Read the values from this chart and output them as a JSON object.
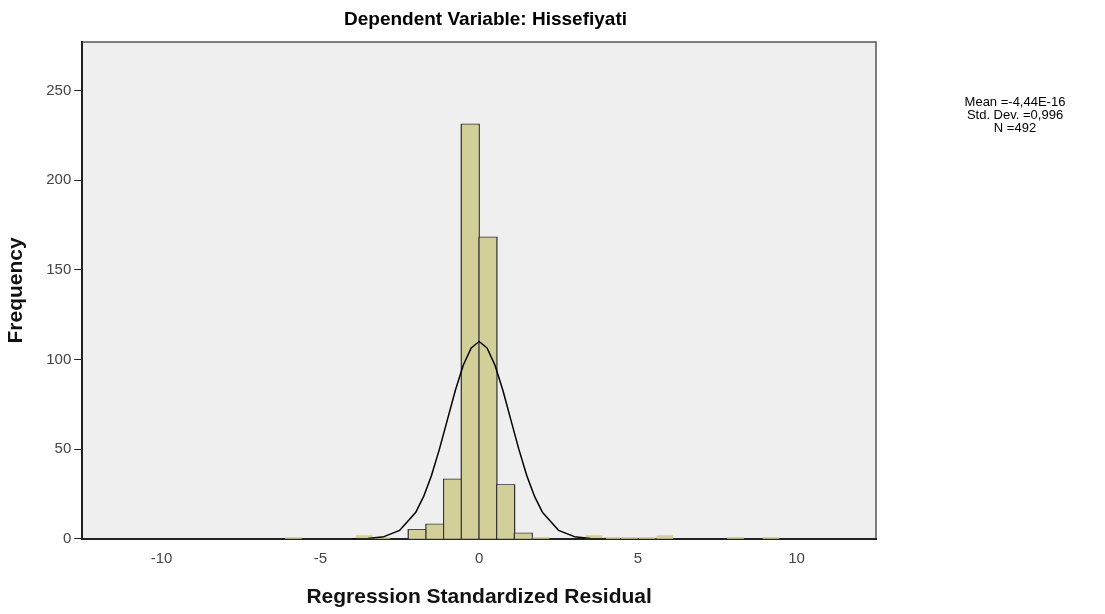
{
  "chart_data": {
    "type": "histogram",
    "title": "Dependent Variable: Hissefiyati",
    "xlabel": "Regression Standardized Residual",
    "ylabel": "Frequency",
    "bins": [
      -6.127,
      -5.57,
      -5.013,
      -4.456,
      -3.899,
      -3.342,
      -2.785,
      -2.228,
      -1.671,
      -1.114,
      -0.557,
      0,
      0.557,
      1.114,
      1.671,
      2.228,
      2.785,
      3.342,
      3.899,
      4.456,
      5.013,
      5.57,
      6.127,
      6.684,
      7.241,
      7.798,
      8.355,
      8.912,
      9.469
    ],
    "values": [
      1,
      0,
      0,
      0,
      2,
      1,
      0,
      5,
      8,
      33,
      231,
      168,
      30,
      3,
      1,
      0,
      0,
      2,
      1,
      1,
      1,
      2,
      0,
      0,
      0,
      1,
      0,
      1
    ],
    "color": "#d3cf98",
    "series": [
      {
        "type": "line",
        "color": "#000000",
        "x": [
          -4,
          -3.5,
          -3,
          -2.5,
          -2,
          -1.75,
          -1.5,
          -1.25,
          -1,
          -0.75,
          -0.5,
          -0.25,
          0,
          0.25,
          0.5,
          0.75,
          1,
          1.25,
          1.5,
          1.75,
          2,
          2.5,
          3,
          3.5,
          4
        ],
        "values": [
          0,
          0.2,
          1.2,
          4.7,
          14.6,
          23.5,
          35.3,
          50,
          66.3,
          82.7,
          96.8,
          106.4,
          110,
          106.4,
          96.8,
          82.7,
          66.3,
          50,
          35.3,
          23.5,
          14.6,
          4.7,
          1.2,
          0.2,
          0
        ]
      }
    ],
    "xlim": [
      -12.5,
      12.5
    ],
    "xticks": [
      -10,
      -5,
      0,
      5,
      10
    ],
    "ylim": [
      0,
      277
    ],
    "yticks": [
      0,
      50,
      100,
      150,
      200,
      250
    ],
    "annotations": [
      "Mean =-4,44E-16",
      "Std. Dev. =0,996",
      "N =492"
    ],
    "grid": false,
    "legend": false,
    "marker": "none"
  }
}
